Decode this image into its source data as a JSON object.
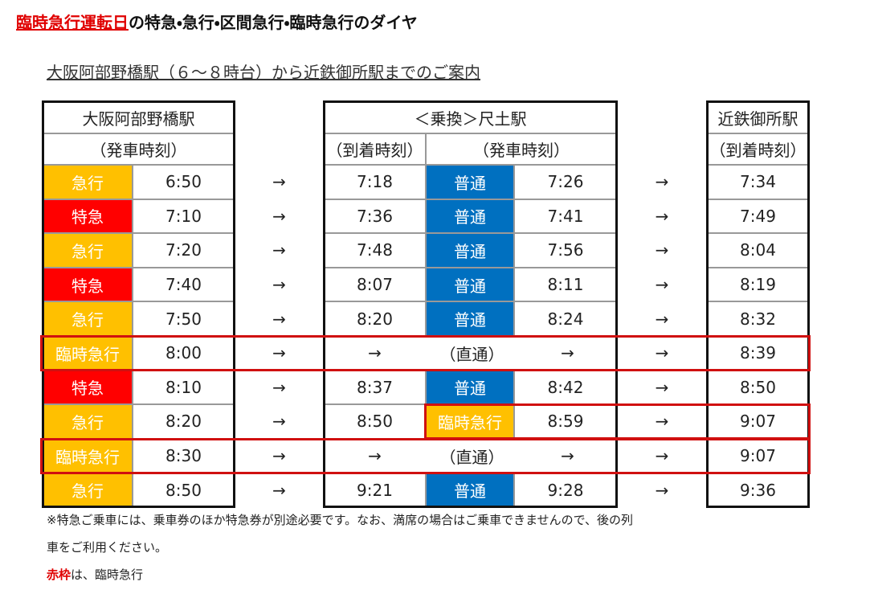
{
  "title": {
    "highlight": "臨時急行運転日",
    "rest": "の特急・急行・区間急行・臨時急行のダイヤ"
  },
  "subtitle": "大阪阿部野橋駅（６～８時台）から近鉄御所駅までのご案内",
  "header": {
    "origin": {
      "name": "大阪阿部野橋駅",
      "label": "（発車時刻）"
    },
    "transfer": {
      "name": "＜乗換＞尺土駅",
      "arrive_label": "（到着時刻）",
      "depart_label": "（発車時刻）"
    },
    "destination": {
      "name": "近鉄御所駅",
      "label": "（到着時刻）"
    }
  },
  "rows": [
    {
      "type": {
        "label": "急行",
        "color": "#ffc000"
      },
      "depart": "6:50",
      "arrow_1": "→",
      "transfer": {
        "arrive": "7:18",
        "type": {
          "label": "普通",
          "color": "#0070c0"
        },
        "depart": "7:26"
      },
      "arrow_2": "→",
      "arrive": "7:34"
    },
    {
      "type": {
        "label": "特急",
        "color": "#ff0000"
      },
      "depart": "7:10",
      "arrow_1": "→",
      "transfer": {
        "arrive": "7:36",
        "type": {
          "label": "普通",
          "color": "#0070c0"
        },
        "depart": "7:41"
      },
      "arrow_2": "→",
      "arrive": "7:49"
    },
    {
      "type": {
        "label": "急行",
        "color": "#ffc000"
      },
      "depart": "7:20",
      "arrow_1": "→",
      "transfer": {
        "arrive": "7:48",
        "type": {
          "label": "普通",
          "color": "#0070c0"
        },
        "depart": "7:56"
      },
      "arrow_2": "→",
      "arrive": "8:04"
    },
    {
      "type": {
        "label": "特急",
        "color": "#ff0000"
      },
      "depart": "7:40",
      "arrow_1": "→",
      "transfer": {
        "arrive": "8:07",
        "type": {
          "label": "普通",
          "color": "#0070c0"
        },
        "depart": "8:11"
      },
      "arrow_2": "→",
      "arrive": "8:19"
    },
    {
      "type": {
        "label": "急行",
        "color": "#ffc000"
      },
      "depart": "7:50",
      "arrow_1": "→",
      "transfer": {
        "arrive": "8:20",
        "type": {
          "label": "普通",
          "color": "#0070c0"
        },
        "depart": "8:24"
      },
      "arrow_2": "→",
      "arrive": "8:32"
    },
    {
      "type": {
        "label": "臨時急行",
        "color": "#ffc000"
      },
      "depart": "8:00",
      "arrow_1": "→",
      "transfer": {
        "through": [
          "→",
          "（直通）",
          "→"
        ]
      },
      "arrow_2": "→",
      "arrive": "8:39"
    },
    {
      "type": {
        "label": "特急",
        "color": "#ff0000"
      },
      "depart": "8:10",
      "arrow_1": "→",
      "transfer": {
        "arrive": "8:37",
        "type": {
          "label": "普通",
          "color": "#0070c0"
        },
        "depart": "8:42"
      },
      "arrow_2": "→",
      "arrive": "8:50"
    },
    {
      "type": {
        "label": "急行",
        "color": "#ffc000"
      },
      "depart": "8:20",
      "arrow_1": "→",
      "transfer": {
        "arrive": "8:50",
        "type": {
          "label": "臨時急行",
          "color": "#ffc000"
        },
        "depart": "8:59"
      },
      "arrow_2": "→",
      "arrive": "9:07"
    },
    {
      "type": {
        "label": "臨時急行",
        "color": "#ffc000"
      },
      "depart": "8:30",
      "arrow_1": "→",
      "transfer": {
        "through": [
          "→",
          "（直通）",
          "→"
        ]
      },
      "arrow_2": "→",
      "arrive": "9:07"
    },
    {
      "type": {
        "label": "急行",
        "color": "#ffc000"
      },
      "depart": "8:50",
      "arrow_1": "→",
      "transfer": {
        "arrive": "9:21",
        "type": {
          "label": "普通",
          "color": "#0070c0"
        },
        "depart": "9:28"
      },
      "arrow_2": "→",
      "arrive": "9:36"
    }
  ],
  "notes": {
    "lines": [
      "※特急ご乗車には、乗車券のほか特急券が別途必要です。なお、満席の場合はご乗車できませんので、後の列",
      "車をご利用ください。"
    ],
    "legend": {
      "highlight": "赤枠",
      "rest": "は、臨時急行"
    }
  }
}
